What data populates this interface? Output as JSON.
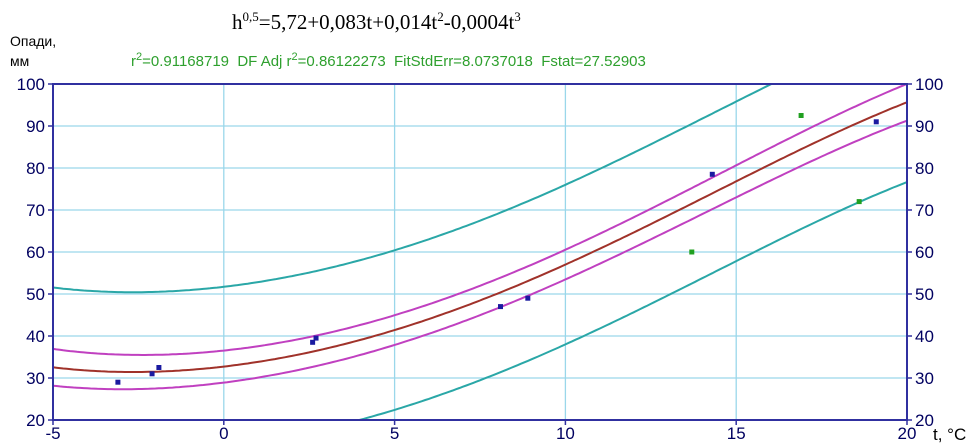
{
  "chart_data": {
    "type": "scatter",
    "title": "h^0.5=5,72+0,083t+0,014t^2-0,0004t^3",
    "title_parts": {
      "base": "h",
      "exp1": "0,5",
      "mid": "=5,72+0,083t+0,014t",
      "exp2": "2",
      "mid2": "-0,0004t",
      "exp3": "3"
    },
    "subtitle_parts": {
      "p1": "r",
      "sup": "2",
      "p2": "=0.91168719  DF Adj r",
      "sup2": "2",
      "p3": "=0.86122273  FitStdErr=8.0737018  Fstat=27.52903"
    },
    "ylabel_line1": "Опади,",
    "ylabel_line2": "мм",
    "xlabel": "t, °C",
    "xlim": [
      -5,
      20
    ],
    "ylim": [
      20,
      100
    ],
    "x_ticks": [
      "-5",
      "0",
      "5",
      "10",
      "15",
      "20"
    ],
    "y_ticks": [
      "20",
      "30",
      "40",
      "50",
      "60",
      "70",
      "80",
      "90",
      "100"
    ],
    "grid": true,
    "colors": {
      "fit": "#a0322a",
      "confidence": "#c040c0",
      "prediction": "#2aa7a7",
      "points_fitted": "#1a1aa0",
      "points_outlier": "#20a020",
      "frame": "#3030a0",
      "grid": "#9ad7ea",
      "stats_text": "#2ea02e"
    },
    "points_fitted": [
      {
        "x": -3.1,
        "y": 29
      },
      {
        "x": -2.1,
        "y": 31
      },
      {
        "x": -1.9,
        "y": 32.5
      },
      {
        "x": 2.6,
        "y": 38.5
      },
      {
        "x": 2.7,
        "y": 39.5
      },
      {
        "x": 8.1,
        "y": 47
      },
      {
        "x": 8.9,
        "y": 49
      },
      {
        "x": 14.3,
        "y": 78.5
      },
      {
        "x": 19.1,
        "y": 91
      }
    ],
    "points_outlier": [
      {
        "x": 13.7,
        "y": 60
      },
      {
        "x": 16.9,
        "y": 92.5
      },
      {
        "x": 18.6,
        "y": 72
      }
    ],
    "fit_coefficients": {
      "a": 5.72,
      "b": 0.083,
      "c": 0.014,
      "d": -0.0004
    },
    "confidence_halfwidth": 3.5,
    "prediction_halfwidth": 19
  }
}
